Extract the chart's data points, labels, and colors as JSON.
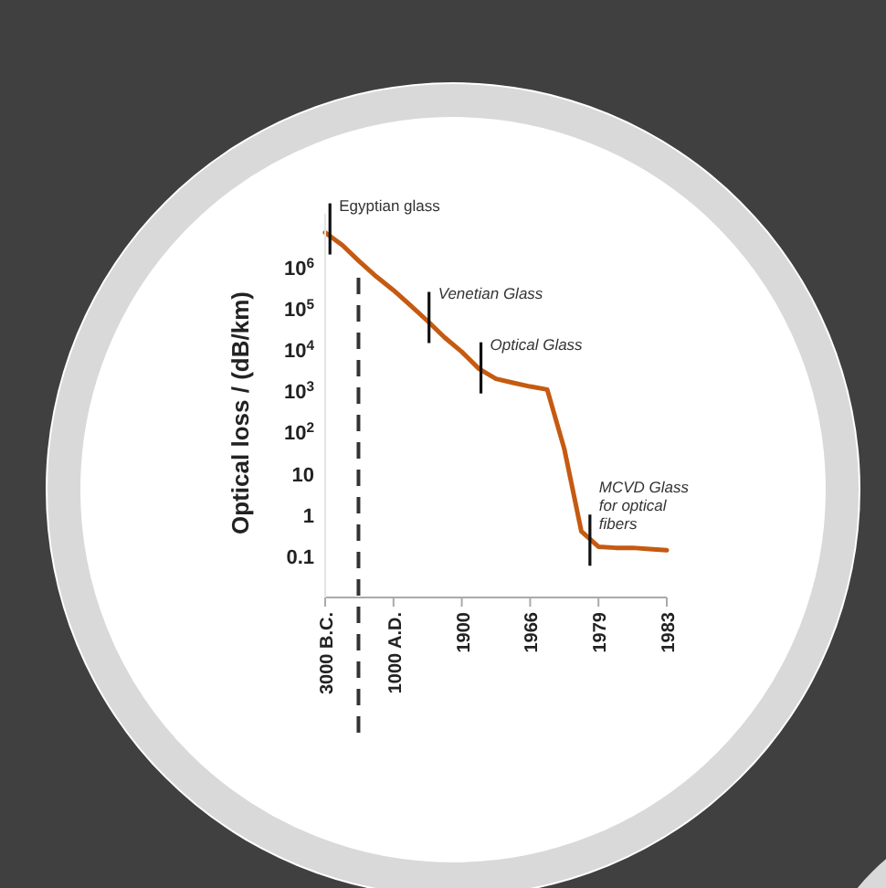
{
  "chart_data": {
    "type": "line",
    "ylabel": "Optical loss / (dB/km)",
    "log": "y",
    "categories": [
      "3000 B.C.",
      null,
      null,
      null,
      "1000 A.D.",
      null,
      null,
      null,
      "1900",
      null,
      null,
      null,
      "1966",
      null,
      null,
      null,
      "1979",
      null,
      null,
      null,
      "1983"
    ],
    "ylim": [
      0.01,
      20000000
    ],
    "yticks": [
      0.1,
      1,
      10,
      {
        "value": 100,
        "label": "10$^{2}$"
      },
      {
        "value": 1000,
        "label": "10$^{3}$"
      },
      {
        "value": 10000,
        "label": "10$^{4}$"
      },
      {
        "value": 100000,
        "label": "10$^{5}$"
      },
      {
        "value": 1000000,
        "label": "10$^{6}$"
      }
    ],
    "marker": "none",
    "line_style": "solid",
    "series": [
      {
        "color": "#c55a11",
        "values": [
          7000000,
          3500000,
          1400000,
          600000,
          280000,
          120000,
          50000,
          20000,
          9000,
          3500,
          2000,
          1600,
          1300,
          1100,
          40,
          0.4,
          0.17,
          0.16,
          0.16,
          0.15,
          0.14
        ]
      }
    ],
    "annotations": [
      "Egyptian glass",
      "Venetian Glass",
      "Optical Glass",
      "MCVD Glass for optical fibers"
    ]
  }
}
